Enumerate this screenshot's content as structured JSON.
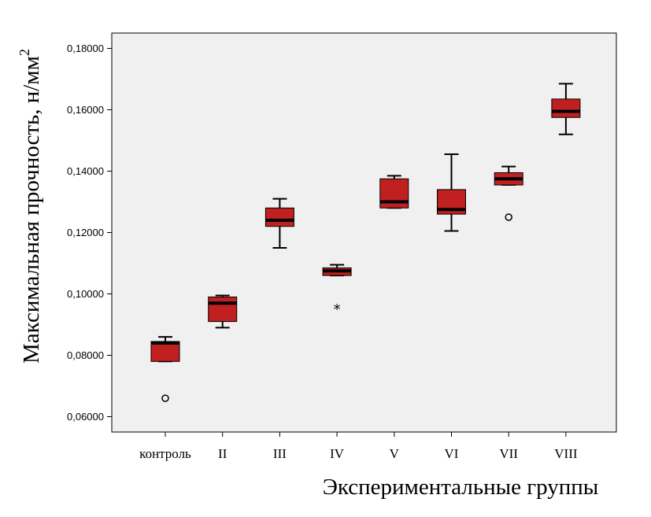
{
  "chart_data": {
    "type": "boxplot",
    "xlabel": "Экспериментальные группы",
    "ylabel": "Максимальная прочность, н/мм",
    "ylabel_superscript": "2",
    "ylim": [
      0.055,
      0.185
    ],
    "yticks": [
      0.06,
      0.08,
      0.1,
      0.12,
      0.14,
      0.16,
      0.18
    ],
    "ytick_labels": [
      "0,06000",
      "0,08000",
      "0,10000",
      "0,12000",
      "0,14000",
      "0,16000",
      "0,18000"
    ],
    "categories": [
      "контроль",
      "II",
      "III",
      "IV",
      "V",
      "VI",
      "VII",
      "VIII"
    ],
    "boxes": [
      {
        "min": 0.078,
        "q1": 0.078,
        "median": 0.084,
        "q3": 0.0845,
        "max": 0.086,
        "outliers": [
          {
            "value": 0.066,
            "type": "circle"
          }
        ]
      },
      {
        "min": 0.089,
        "q1": 0.091,
        "median": 0.097,
        "q3": 0.099,
        "max": 0.0995,
        "outliers": []
      },
      {
        "min": 0.115,
        "q1": 0.122,
        "median": 0.124,
        "q3": 0.128,
        "max": 0.131,
        "outliers": []
      },
      {
        "min": 0.106,
        "q1": 0.106,
        "median": 0.1075,
        "q3": 0.1085,
        "max": 0.1095,
        "outliers": [
          {
            "value": 0.0955,
            "type": "star"
          }
        ]
      },
      {
        "min": 0.128,
        "q1": 0.128,
        "median": 0.13,
        "q3": 0.1375,
        "max": 0.1385,
        "outliers": []
      },
      {
        "min": 0.1205,
        "q1": 0.126,
        "median": 0.1275,
        "q3": 0.134,
        "max": 0.1455,
        "outliers": []
      },
      {
        "min": 0.1355,
        "q1": 0.1355,
        "median": 0.1375,
        "q3": 0.1395,
        "max": 0.1415,
        "outliers": [
          {
            "value": 0.125,
            "type": "circle"
          }
        ]
      },
      {
        "min": 0.152,
        "q1": 0.1575,
        "median": 0.1595,
        "q3": 0.1635,
        "max": 0.1685,
        "outliers": []
      }
    ],
    "colors": {
      "box_fill": "#c0201f",
      "plot_bg": "#f0f0f0",
      "line": "#000000"
    },
    "grid": false,
    "legend": "none"
  }
}
